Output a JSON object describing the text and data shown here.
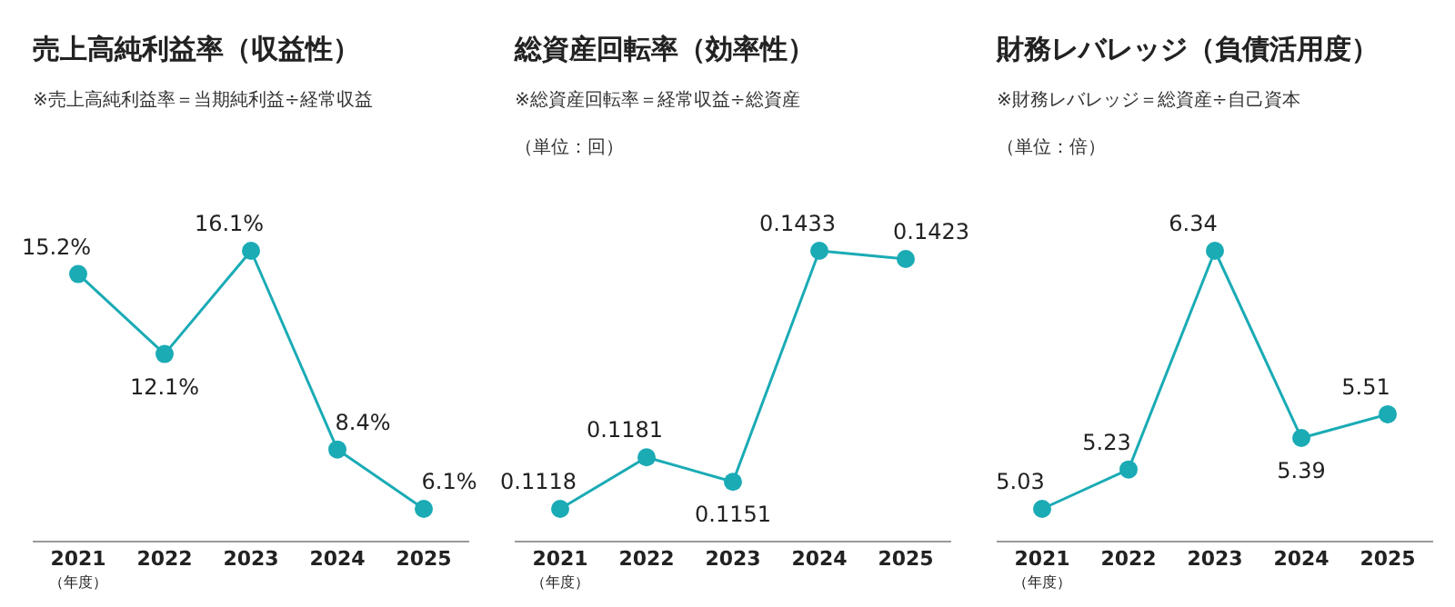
{
  "chart_data": [
    {
      "type": "line",
      "title": "売上高純利益率（収益性）",
      "subtitle": "※売上高純利益率＝当期純利益÷経常収益",
      "xlabel": "（年度）",
      "categories": [
        "2021",
        "2022",
        "2023",
        "2024",
        "2025"
      ],
      "marker": "circle",
      "series": [
        {
          "color": "#1aabb5",
          "values": [
            15.2,
            12.1,
            16.1,
            8.4,
            6.1
          ],
          "value_labels": [
            "15.2%",
            "12.1%",
            "16.1%",
            "8.4%",
            "6.1%"
          ]
        }
      ]
    },
    {
      "type": "line",
      "title": "総資産回転率（効率性）",
      "subtitle": "※総資産回転率＝経常収益÷総資産",
      "annotations": [
        "（単位：回）"
      ],
      "xlabel": "（年度）",
      "categories": [
        "2021",
        "2022",
        "2023",
        "2024",
        "2025"
      ],
      "marker": "circle",
      "series": [
        {
          "color": "#1aabb5",
          "values": [
            0.1118,
            0.1181,
            0.1151,
            0.1433,
            0.1423
          ],
          "value_labels": [
            "0.1118",
            "0.1181",
            "0.1151",
            "0.1433",
            "0.1423"
          ]
        }
      ]
    },
    {
      "type": "line",
      "title": "財務レバレッジ（負債活用度）",
      "subtitle": "※財務レバレッジ＝総資産÷自己資本",
      "annotations": [
        "（単位：倍）"
      ],
      "xlabel": "（年度）",
      "categories": [
        "2021",
        "2022",
        "2023",
        "2024",
        "2025"
      ],
      "marker": "circle",
      "series": [
        {
          "color": "#1aabb5",
          "values": [
            5.03,
            5.23,
            6.34,
            5.39,
            5.51
          ],
          "value_labels": [
            "5.03",
            "5.23",
            "6.34",
            "5.39",
            "5.51"
          ]
        }
      ]
    }
  ]
}
